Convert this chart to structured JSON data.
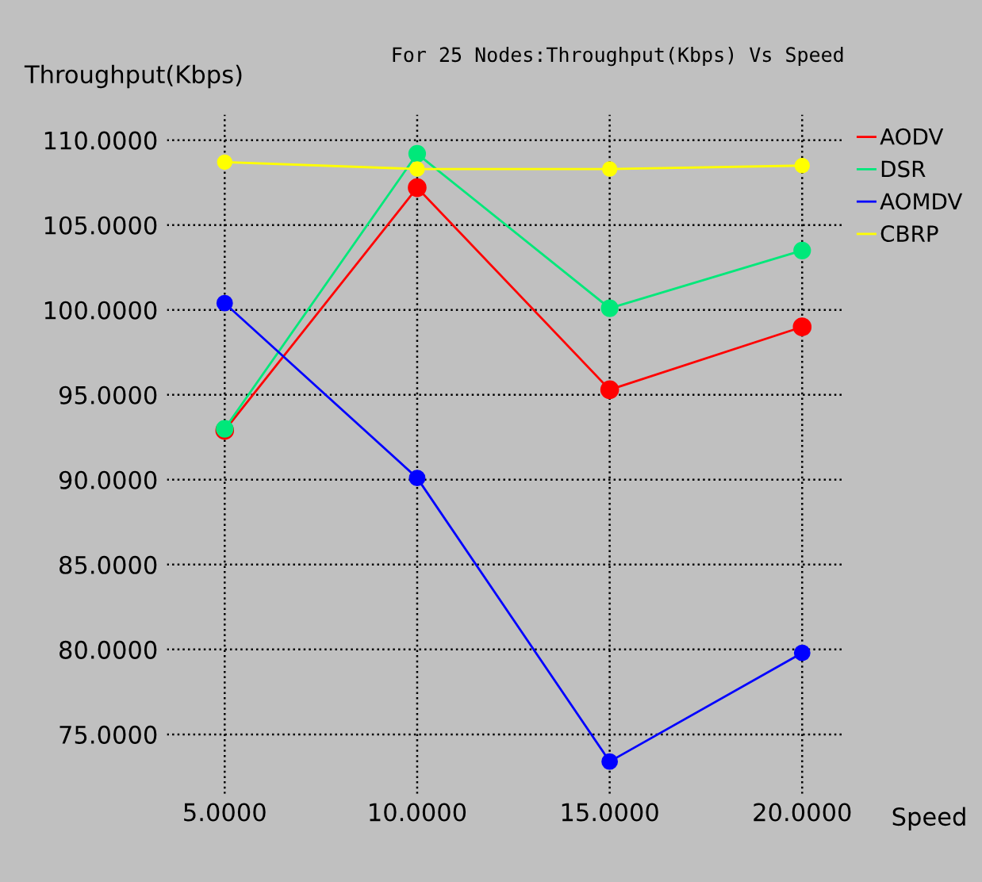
{
  "chart_data": {
    "type": "line",
    "title": "For 25 Nodes:Throughput(Kbps) Vs Speed",
    "xlabel": "Speed",
    "ylabel": "Throughput(Kbps)",
    "x": [
      5,
      10,
      15,
      20
    ],
    "series": [
      {
        "name": "AODV",
        "color": "#ff0000",
        "values": [
          92.9,
          107.2,
          95.3,
          99.0
        ]
      },
      {
        "name": "DSR",
        "color": "#00e87a",
        "values": [
          93.0,
          109.2,
          100.1,
          103.5
        ]
      },
      {
        "name": "AOMDV",
        "color": "#0000ff",
        "values": [
          100.4,
          90.1,
          73.4,
          79.8
        ]
      },
      {
        "name": "CBRP",
        "color": "#ffff00",
        "values": [
          108.7,
          108.3,
          108.3,
          108.5
        ]
      }
    ],
    "xlim": [
      3.5,
      21.1
    ],
    "ylim": [
      71.5,
      111.5
    ],
    "xticks": [
      {
        "value": 5,
        "label": "5.0000"
      },
      {
        "value": 10,
        "label": "10.0000"
      },
      {
        "value": 15,
        "label": "15.0000"
      },
      {
        "value": 20,
        "label": "20.0000"
      }
    ],
    "yticks": [
      {
        "value": 75,
        "label": "75.0000"
      },
      {
        "value": 80,
        "label": "80.0000"
      },
      {
        "value": 85,
        "label": "85.0000"
      },
      {
        "value": 90,
        "label": "90.0000"
      },
      {
        "value": 95,
        "label": "95.0000"
      },
      {
        "value": 100,
        "label": "100.0000"
      },
      {
        "value": 105,
        "label": "105.0000"
      },
      {
        "value": 110,
        "label": "110.0000"
      }
    ],
    "grid": true,
    "legend": "right",
    "marker": "circle",
    "line_style": "solid"
  }
}
